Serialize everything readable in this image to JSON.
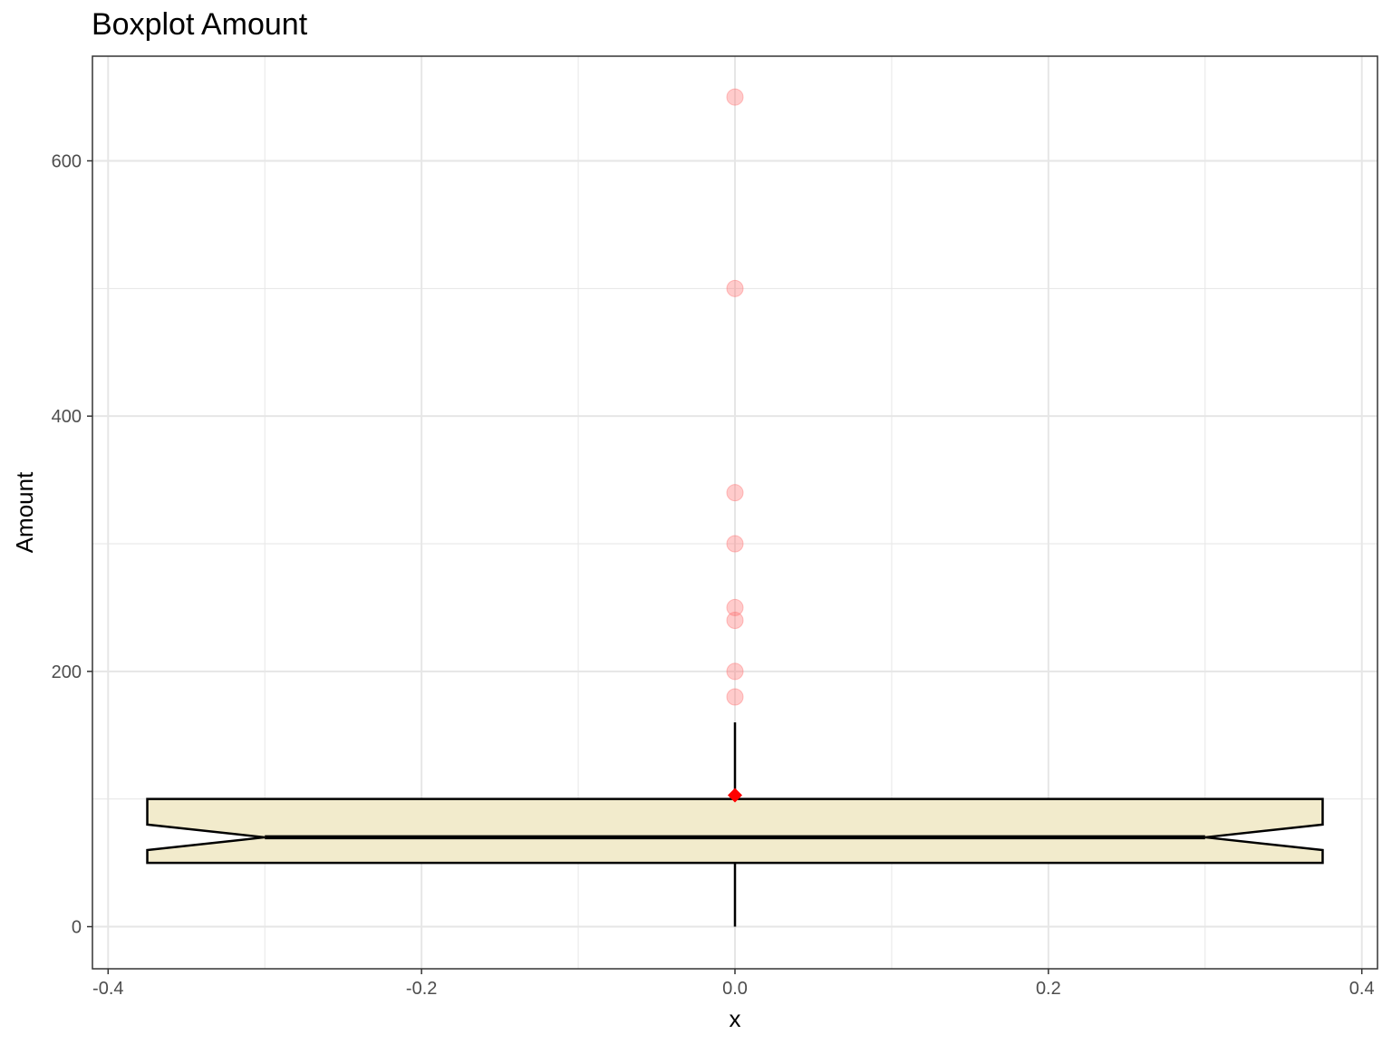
{
  "chart_data": {
    "type": "boxplot",
    "title": "Boxplot Amount",
    "xlabel": "x",
    "ylabel": "Amount",
    "xlim": [
      -0.41,
      0.41
    ],
    "ylim": [
      -33,
      682
    ],
    "x_ticks": [
      -0.4,
      -0.2,
      0.0,
      0.2,
      0.4
    ],
    "x_tick_labels": [
      "-0.4",
      "-0.2",
      "0.0",
      "0.2",
      "0.4"
    ],
    "y_ticks": [
      0,
      200,
      400,
      600
    ],
    "y_tick_labels": [
      "0",
      "200",
      "400",
      "600"
    ],
    "grid": true,
    "box": {
      "x": 0,
      "half_width": 0.375,
      "notched": true,
      "notch_half_width": 0.3,
      "q1": 50,
      "median": 70,
      "q3": 100,
      "notch_lower": 60,
      "notch_upper": 80,
      "whisker_low": 0,
      "whisker_high": 160
    },
    "outliers": [
      180,
      200,
      240,
      250,
      300,
      340,
      500,
      650
    ],
    "mean": 103,
    "colors": {
      "box_fill": "#f2ebcc",
      "box_stroke": "#000000",
      "outlier": "#ff6b6b",
      "mean_marker": "#ff0000",
      "grid": "#e6e6e6",
      "panel_border": "#333333"
    }
  }
}
